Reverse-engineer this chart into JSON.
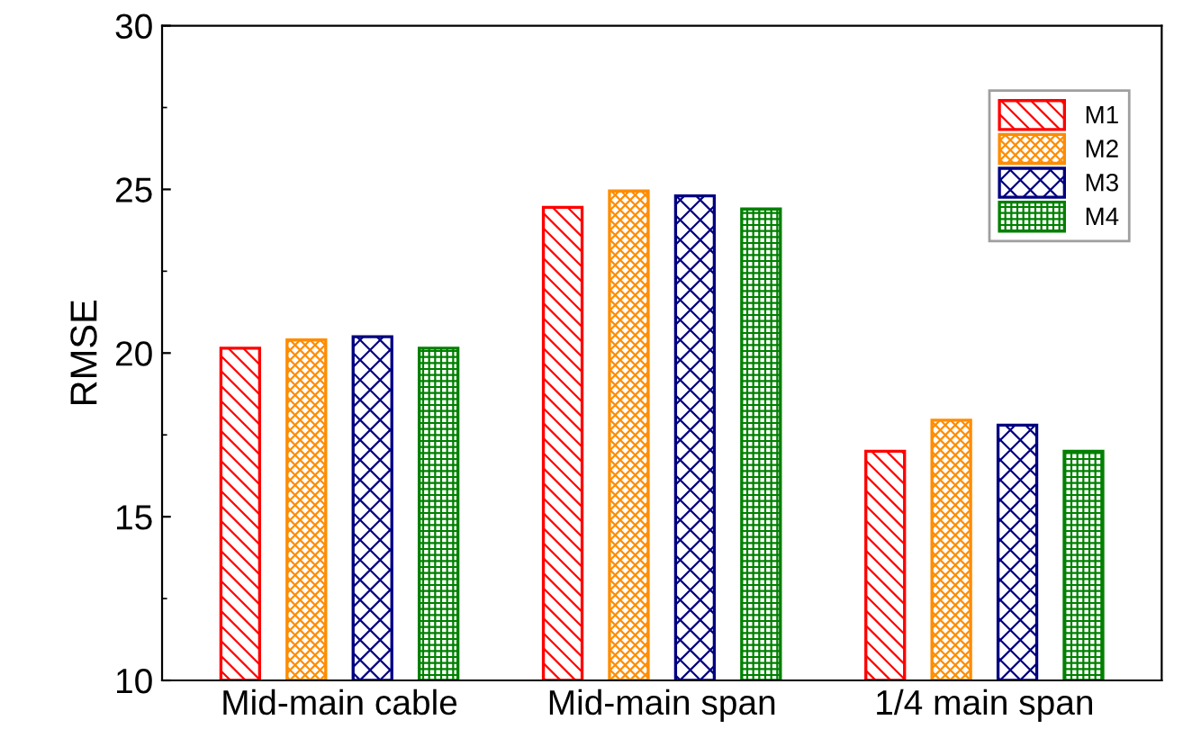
{
  "chart_data": {
    "type": "bar",
    "ylabel": "RMSE",
    "categories": [
      "Mid-main cable",
      "Mid-main span",
      "1/4 main span"
    ],
    "series": [
      {
        "name": "M1",
        "color": "#ff0000",
        "values": [
          20.15,
          24.45,
          17.0
        ]
      },
      {
        "name": "M2",
        "color": "#ff8c00",
        "values": [
          20.4,
          24.95,
          17.95
        ]
      },
      {
        "name": "M3",
        "color": "#000080",
        "values": [
          20.5,
          24.8,
          17.8
        ]
      },
      {
        "name": "M4",
        "color": "#008000",
        "values": [
          20.15,
          24.4,
          17.0
        ]
      }
    ],
    "ylim": [
      10,
      30
    ],
    "yticks": [
      10,
      15,
      20,
      25,
      30
    ],
    "grid": false,
    "legend": "top right"
  }
}
